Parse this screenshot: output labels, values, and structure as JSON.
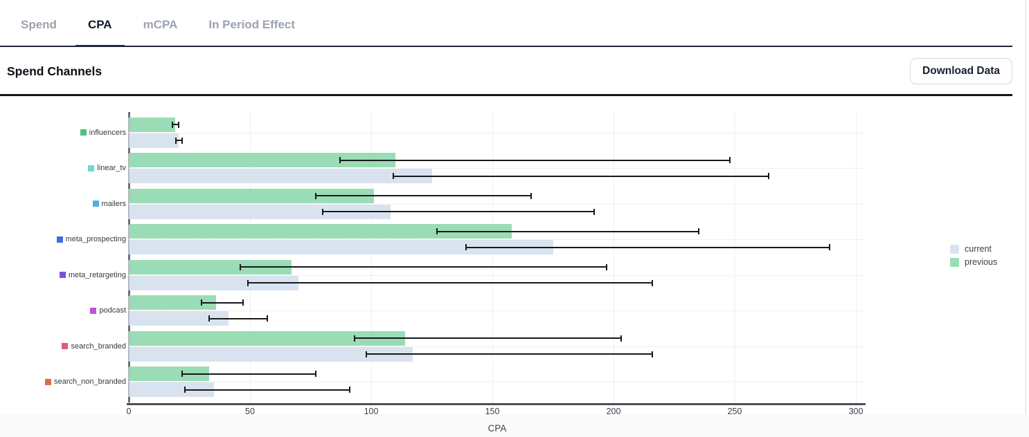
{
  "tabs": [
    {
      "label": "Spend",
      "active": false
    },
    {
      "label": "CPA",
      "active": true
    },
    {
      "label": "mCPA",
      "active": false
    },
    {
      "label": "In Period Effect",
      "active": false
    }
  ],
  "header": {
    "title": "Spend Channels",
    "download_button": "Download Data"
  },
  "legend": [
    {
      "label": "current",
      "color": "#d9e3f0"
    },
    {
      "label": "previous",
      "color": "#9adcb5"
    }
  ],
  "chart_data": {
    "type": "bar",
    "orientation": "horizontal",
    "title": "",
    "xlabel": "CPA",
    "ylabel": "",
    "xlim": [
      0,
      300
    ],
    "xticks": [
      0,
      50,
      100,
      150,
      200,
      250,
      300
    ],
    "grid": "dotted",
    "legend_position": "right",
    "error_bar_color": "#181818",
    "categories": [
      "influencers",
      "linear_tv",
      "mailers",
      "meta_prospecting",
      "meta_retargeting",
      "podcast",
      "search_branded",
      "search_non_branded"
    ],
    "category_marker_colors": [
      "#4fc185",
      "#76d7c9",
      "#54aeea",
      "#3d6fd7",
      "#7a52d9",
      "#c44fd9",
      "#e25c74",
      "#de6a4b"
    ],
    "series": [
      {
        "name": "previous",
        "color": "#9adcb5",
        "values": [
          19,
          110,
          101,
          158,
          67,
          36,
          114,
          33
        ],
        "error_low": [
          18,
          87,
          77,
          127,
          46,
          30,
          93,
          22
        ],
        "error_high": [
          20.5,
          248,
          166,
          235,
          197,
          47,
          203,
          77
        ]
      },
      {
        "name": "current",
        "color": "#d9e3f0",
        "values": [
          20.5,
          125,
          108,
          175,
          70,
          41,
          117,
          35
        ],
        "error_low": [
          19.5,
          109,
          80,
          139,
          49,
          33,
          98,
          23
        ],
        "error_high": [
          22,
          264,
          192,
          289,
          216,
          57,
          216,
          91
        ]
      }
    ]
  }
}
